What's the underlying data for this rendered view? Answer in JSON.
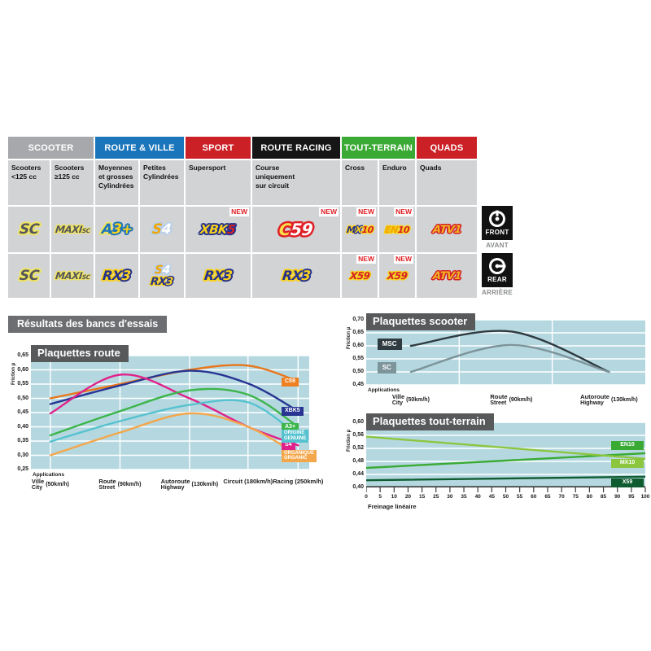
{
  "table": {
    "new_label": "NEW",
    "groups": [
      {
        "label": "SCOOTER",
        "color": "#a6a8ab",
        "span": 2
      },
      {
        "label": "ROUTE & VILLE",
        "color": "#1b75bb",
        "span": 2
      },
      {
        "label": "SPORT",
        "color": "#cb2026",
        "span": 1
      },
      {
        "label": "ROUTE RACING",
        "color": "#161616",
        "span": 1
      },
      {
        "label": "TOUT-TERRAIN",
        "color": "#3baa35",
        "span": 2
      },
      {
        "label": "QUADS",
        "color": "#cb2026",
        "span": 1
      }
    ],
    "subheaders": [
      "Scooters\n<125 cc",
      "Scooters\n≥125 cc",
      "Moyennes\net grosses\nCylindrées",
      "Petites\nCylindrées",
      "Supersport",
      "Course\nuniquement\nsur circuit",
      "Cross",
      "Enduro",
      "Quads"
    ],
    "front_row": [
      {
        "new": false,
        "badges": [
          {
            "name": "SC",
            "glow": "#f0e45e",
            "parts": [
              {
                "t": "SC",
                "c": "#55565a"
              }
            ]
          }
        ]
      },
      {
        "new": false,
        "badges": [
          {
            "name": "MAXI SC",
            "glow": "#f0e45e",
            "parts": [
              {
                "t": "MAXI",
                "c": "#55565a"
              },
              {
                "t": "SC",
                "c": "#55565a",
                "small": true
              }
            ]
          }
        ]
      },
      {
        "new": false,
        "badges": [
          {
            "name": "A3+",
            "glow": "#f0e45e",
            "parts": [
              {
                "t": "A",
                "c": "#1b75bb"
              },
              {
                "t": "3+",
                "c": "#f8d11c",
                "dark": "#1b75bb"
              }
            ]
          }
        ]
      },
      {
        "new": false,
        "badges": [
          {
            "name": "S4",
            "glow": "#b9cfe8",
            "parts": [
              {
                "t": "S",
                "c": "#f0a500"
              },
              {
                "t": "4",
                "c": "#ffffff"
              }
            ]
          }
        ]
      },
      {
        "new": true,
        "badges": [
          {
            "name": "XBK5",
            "glow": "#26328c",
            "parts": [
              {
                "t": "XBK",
                "c": "#f8d11c"
              },
              {
                "t": "5",
                "c": "#d42027"
              }
            ]
          }
        ]
      },
      {
        "new": true,
        "badges": [
          {
            "name": "C59",
            "glow": "#e01f26",
            "parts": [
              {
                "t": "C",
                "c": "#f8e04a"
              },
              {
                "t": "59",
                "c": "#ffffff"
              }
            ]
          }
        ]
      },
      {
        "new": true,
        "badges": [
          {
            "name": "MX10",
            "glow": "#f8d11c",
            "parts": [
              {
                "t": "M",
                "c": "#26328c"
              },
              {
                "t": "X",
                "c": "#f8d11c",
                "dark": "#26328c"
              },
              {
                "t": "10",
                "c": "#d42027"
              }
            ]
          }
        ]
      },
      {
        "new": true,
        "badges": [
          {
            "name": "EN10",
            "glow": "#f8d11c",
            "parts": [
              {
                "t": "EN",
                "c": "#f0a500"
              },
              {
                "t": "10",
                "c": "#d42027"
              }
            ]
          }
        ]
      },
      {
        "new": false,
        "badges": [
          {
            "name": "ATV1",
            "glow": "#d42027",
            "parts": [
              {
                "t": "ATV1",
                "c": "#f0b323"
              }
            ]
          }
        ]
      }
    ],
    "rear_row": [
      {
        "new": false,
        "badges": [
          {
            "name": "SC",
            "glow": "#f0e45e",
            "parts": [
              {
                "t": "SC",
                "c": "#55565a"
              }
            ]
          }
        ]
      },
      {
        "new": false,
        "badges": [
          {
            "name": "MAXI SC",
            "glow": "#f0e45e",
            "parts": [
              {
                "t": "MAXI",
                "c": "#55565a"
              },
              {
                "t": "SC",
                "c": "#55565a",
                "small": true
              }
            ]
          }
        ]
      },
      {
        "new": false,
        "badges": [
          {
            "name": "RX3",
            "glow": "#f8d11c",
            "parts": [
              {
                "t": "RX",
                "c": "#26328c"
              },
              {
                "t": "3",
                "c": "#f8d11c",
                "dark": "#26328c"
              }
            ]
          }
        ]
      },
      {
        "new": false,
        "badges": [
          {
            "name": "S4",
            "glow": "#b9cfe8",
            "parts": [
              {
                "t": "S",
                "c": "#f0a500"
              },
              {
                "t": "4",
                "c": "#ffffff"
              }
            ]
          },
          {
            "name": "RX3",
            "glow": "#f8d11c",
            "parts": [
              {
                "t": "RX",
                "c": "#26328c"
              },
              {
                "t": "3",
                "c": "#f8d11c",
                "dark": "#26328c"
              }
            ]
          }
        ]
      },
      {
        "new": false,
        "badges": [
          {
            "name": "RX3",
            "glow": "#f8d11c",
            "parts": [
              {
                "t": "RX",
                "c": "#26328c"
              },
              {
                "t": "3",
                "c": "#f8d11c",
                "dark": "#26328c"
              }
            ]
          }
        ]
      },
      {
        "new": false,
        "badges": [
          {
            "name": "RX3",
            "glow": "#f8d11c",
            "parts": [
              {
                "t": "RX",
                "c": "#26328c"
              },
              {
                "t": "3",
                "c": "#f8d11c",
                "dark": "#26328c"
              }
            ]
          }
        ]
      },
      {
        "new": true,
        "badges": [
          {
            "name": "X59",
            "glow": "#f8d11c",
            "parts": [
              {
                "t": "X59",
                "c": "#d42027"
              }
            ]
          }
        ]
      },
      {
        "new": true,
        "badges": [
          {
            "name": "X59",
            "glow": "#f8d11c",
            "parts": [
              {
                "t": "X59",
                "c": "#d42027"
              }
            ]
          }
        ]
      },
      {
        "new": false,
        "badges": [
          {
            "name": "ATV1",
            "glow": "#d42027",
            "parts": [
              {
                "t": "ATV1",
                "c": "#f0b323"
              }
            ]
          }
        ]
      }
    ],
    "front_marker": {
      "title": "FRONT",
      "subtitle": "AVANT"
    },
    "rear_marker": {
      "title": "REAR",
      "subtitle": "ARRIÈRE"
    }
  },
  "results_heading": "Résultats des bancs d'essais",
  "chart_data": [
    {
      "id": "route",
      "type": "line",
      "title": "Plaquettes route",
      "ylabel": "Friction µ",
      "xlabel": "Applications",
      "ylim": [
        0.25,
        0.65
      ],
      "ystep": 0.05,
      "grid": "on",
      "grid_vertical": "categories",
      "legend_position": "right-of-lines",
      "categories": [
        {
          "fr": "Ville",
          "en": "City",
          "speed": "(50km/h)",
          "x": 0.07
        },
        {
          "fr": "Route",
          "en": "Street",
          "speed": "(90km/h)",
          "x": 0.32
        },
        {
          "fr": "Autoroute",
          "en": "Highway",
          "speed": "(130km/h)",
          "x": 0.57
        },
        {
          "fr": "Circuit",
          "en": "",
          "speed": "(180km/h)",
          "x": 0.78
        },
        {
          "fr": "Racing",
          "en": "",
          "speed": "(250km/h)",
          "x": 0.96
        }
      ],
      "series": [
        {
          "name": "C59",
          "color": "#e8761b",
          "values": [
            0.5,
            0.55,
            0.6,
            0.615,
            0.56
          ],
          "label": {
            "lines": [
              "C59"
            ],
            "bg": "#ef8022"
          }
        },
        {
          "name": "XBK5",
          "color": "#283593",
          "values": [
            0.48,
            0.545,
            0.597,
            0.552,
            0.455
          ],
          "label": {
            "lines": [
              "XBK5"
            ],
            "bg": "#283593"
          }
        },
        {
          "name": "S4",
          "color": "#e0218a",
          "values": [
            0.447,
            0.583,
            0.5,
            0.4,
            0.335
          ],
          "label": {
            "lines": [
              "S4"
            ],
            "bg": "#e0218a"
          }
        },
        {
          "name": "A3+",
          "color": "#3cb54a",
          "values": [
            0.37,
            0.455,
            0.528,
            0.513,
            0.4
          ],
          "label": {
            "lines": [
              "A3+"
            ],
            "bg": "#3cb54a"
          }
        },
        {
          "name": "ORIGINE GENUINE",
          "color": "#56c2cf",
          "values": [
            0.348,
            0.42,
            0.477,
            0.486,
            0.37
          ],
          "label": {
            "lines": [
              "ORIGINE",
              "GENUINE"
            ],
            "bg": "#56c2cf"
          }
        },
        {
          "name": "ORGANIQUE ORGANIC",
          "color": "#f4a64a",
          "values": [
            0.3,
            0.38,
            0.447,
            0.4,
            0.3
          ],
          "label": {
            "lines": [
              "ORGANIQUE",
              "ORGANIC"
            ],
            "bg": "#f4a64a"
          }
        }
      ]
    },
    {
      "id": "scooter",
      "type": "line",
      "title": "Plaquettes scooter",
      "ylabel": "Friction µ",
      "xlabel": "Applications",
      "ylim": [
        0.45,
        0.7
      ],
      "ystep": 0.05,
      "grid": "on",
      "grid_vertical": "thirds",
      "legend_position": "left-of-lines",
      "categories": [
        {
          "fr": "Ville",
          "en": "City",
          "speed": "(50km/h)",
          "x": 0.16
        },
        {
          "fr": "Route",
          "en": "Street",
          "speed": "(90km/h)",
          "x": 0.52
        },
        {
          "fr": "Autoroute",
          "en": "Highway",
          "speed": "(130km/h)",
          "x": 0.87
        }
      ],
      "series": [
        {
          "name": "MSC",
          "color": "#2f3b40",
          "values": [
            0.6,
            0.655,
            0.5
          ],
          "label": {
            "lines": [
              "MSC"
            ],
            "bg": "#2f3b40",
            "pos": [
              0.04,
              0.607
            ]
          }
        },
        {
          "name": "SC",
          "color": "#7e949b",
          "values": [
            0.5,
            0.603,
            0.5
          ],
          "label": {
            "lines": [
              "SC"
            ],
            "bg": "#7e949b",
            "pos": [
              0.04,
              0.517
            ]
          }
        }
      ]
    },
    {
      "id": "offroad",
      "type": "line",
      "title": "Plaquettes tout-terrain",
      "ylabel": "Friction µ",
      "xlabel": "Freinage linéaire",
      "ylim": [
        0.4,
        0.6
      ],
      "ystep": 0.04,
      "xlim": [
        0,
        100
      ],
      "grid": "on",
      "grid_vertical": "none",
      "legend_position": "right-inside",
      "xtick_labels": [
        "0",
        "5",
        "10",
        "20",
        "15",
        "25",
        "30",
        "35",
        "40",
        "45",
        "50",
        "55",
        "60",
        "65",
        "70",
        "75",
        "80",
        "85",
        "90",
        "95",
        "100"
      ],
      "series": [
        {
          "name": "EN10",
          "color": "#3aaa35",
          "points": [
            [
              0,
              0.46
            ],
            [
              100,
              0.505
            ]
          ],
          "label": {
            "lines": [
              "EN10"
            ],
            "bg": "#3aaa35",
            "pos_y": 0.527
          }
        },
        {
          "name": "MX10",
          "color": "#8cc63f",
          "points": [
            [
              0,
              0.556
            ],
            [
              100,
              0.488
            ]
          ],
          "label": {
            "lines": [
              "MX10"
            ],
            "bg": "#8cc63f",
            "pos_y": 0.472
          }
        },
        {
          "name": "X59",
          "color": "#0e5c2f",
          "points": [
            [
              0,
              0.422
            ],
            [
              100,
              0.433
            ]
          ],
          "label": {
            "lines": [
              "X59"
            ],
            "bg": "#0e5c2f",
            "pos_y": 0.413
          }
        }
      ]
    }
  ]
}
